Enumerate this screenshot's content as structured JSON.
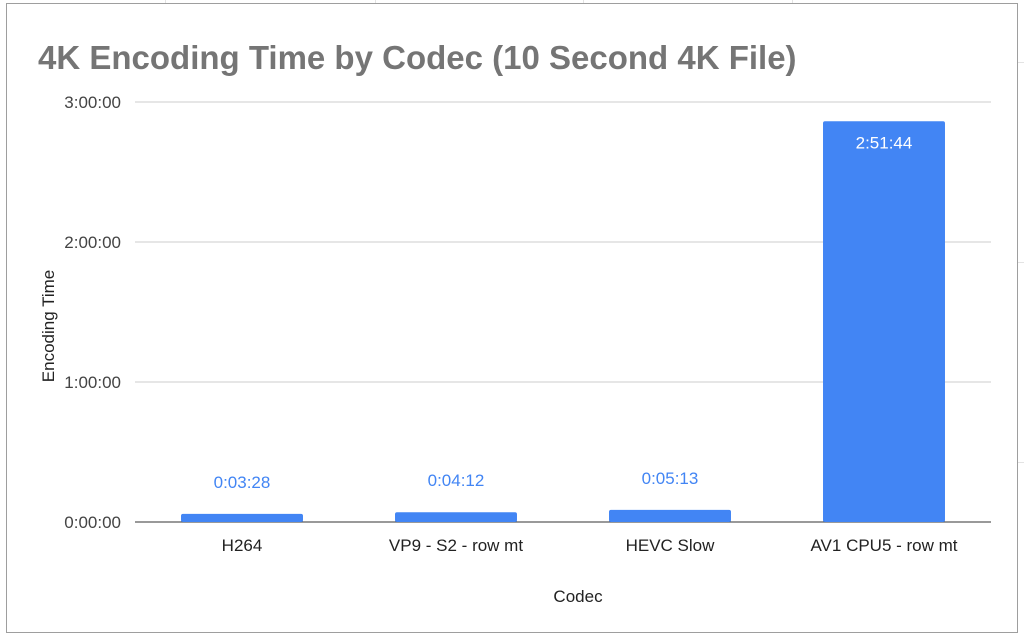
{
  "chart_data": {
    "type": "bar",
    "title": "4K Encoding Time by Codec (10 Second 4K File)",
    "xlabel": "Codec",
    "ylabel": "Encoding Time",
    "categories": [
      "H264",
      "VP9 - S2 - row mt",
      "HEVC Slow",
      "AV1 CPU5 - row mt"
    ],
    "values_seconds": [
      208,
      252,
      313,
      10304
    ],
    "data_labels": [
      "0:03:28",
      "0:04:12",
      "0:05:13",
      "2:51:44"
    ],
    "ylim_seconds": [
      0,
      10800
    ],
    "yticks_seconds": [
      0,
      3600,
      7200,
      10800
    ],
    "ytick_labels": [
      "0:00:00",
      "1:00:00",
      "2:00:00",
      "3:00:00"
    ],
    "grid": true,
    "legend": "none",
    "bar_color": "#4285f4",
    "gridline_color": "#cccccc",
    "title_color": "#757575"
  }
}
